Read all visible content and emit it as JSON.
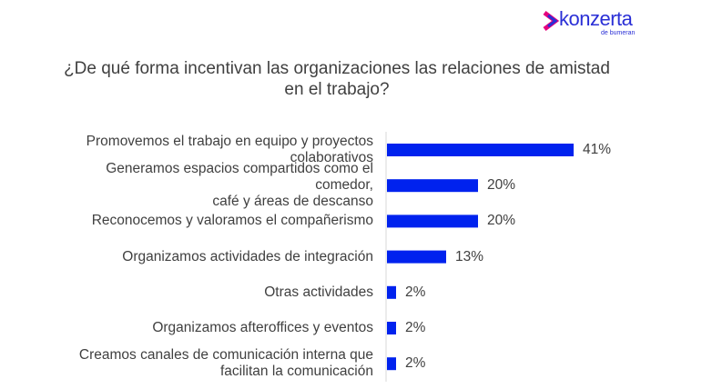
{
  "logo": {
    "name": "konzerta",
    "sub": "de bumeran"
  },
  "chart_data": {
    "type": "bar",
    "orientation": "horizontal",
    "title": "¿De qué forma incentivan las organizaciones las relaciones de amistad en el trabajo?",
    "title_lines": [
      "¿De qué forma incentivan las organizaciones las relaciones de amistad",
      "en el trabajo?"
    ],
    "categories": [
      "Promovemos el trabajo en equipo y proyectos colaborativos",
      "Generamos espacios compartidos como el comedor, café y áreas de descanso",
      "Reconocemos y valoramos el compañerismo",
      "Organizamos actividades de integración",
      "Otras actividades",
      "Organizamos afteroffices y eventos",
      "Creamos canales de comunicación interna que facilitan la comunicación"
    ],
    "category_lines": [
      [
        "Promovemos el trabajo en equipo y proyectos",
        "colaborativos"
      ],
      [
        "Generamos espacios compartidos como el comedor,",
        "café y áreas de descanso"
      ],
      [
        "Reconocemos y valoramos el compañerismo"
      ],
      [
        "Organizamos actividades de integración"
      ],
      [
        "Otras actividades"
      ],
      [
        "Organizamos afteroffices y eventos"
      ],
      [
        "Creamos canales de comunicación interna que",
        "facilitan la comunicación"
      ]
    ],
    "values": [
      41,
      20,
      20,
      13,
      2,
      2,
      2
    ],
    "labels": [
      "41%",
      "20%",
      "20%",
      "13%",
      "2%",
      "2%",
      "2%"
    ],
    "unit": "%",
    "xlim": [
      0,
      50
    ],
    "grid": false,
    "bar_color": "#0022ee"
  }
}
